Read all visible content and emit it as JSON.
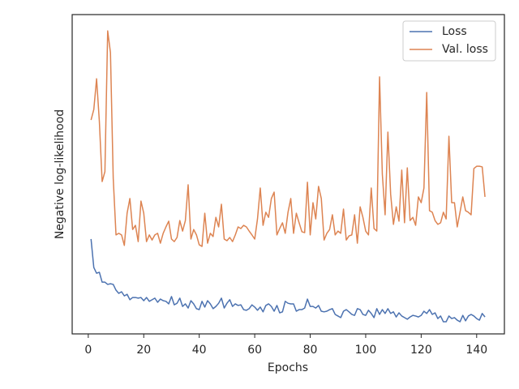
{
  "chart_data": {
    "type": "line",
    "xlabel": "Epochs",
    "ylabel": "Negative log-likelihood",
    "x": [
      1,
      2,
      3,
      4,
      5,
      6,
      7,
      8,
      9,
      10,
      11,
      12,
      13,
      14,
      15,
      16,
      17,
      18,
      19,
      20,
      21,
      22,
      23,
      24,
      25,
      26,
      27,
      28,
      29,
      30,
      31,
      32,
      33,
      34,
      35,
      36,
      37,
      38,
      39,
      40,
      41,
      42,
      43,
      44,
      45,
      46,
      47,
      48,
      49,
      50,
      51,
      52,
      53,
      54,
      55,
      56,
      57,
      58,
      59,
      60,
      61,
      62,
      63,
      64,
      65,
      66,
      67,
      68,
      69,
      70,
      71,
      72,
      73,
      74,
      75,
      76,
      77,
      78,
      79,
      80,
      81,
      82,
      83,
      84,
      85,
      86,
      87,
      88,
      89,
      90,
      91,
      92,
      93,
      94,
      95,
      96,
      97,
      98,
      99,
      100,
      101,
      102,
      103,
      104,
      105,
      106,
      107,
      108,
      109,
      110,
      111,
      112,
      113,
      114,
      115,
      116,
      117,
      118,
      119,
      120,
      121,
      122,
      123,
      124,
      125,
      126,
      127,
      128,
      129,
      130,
      131,
      132,
      133,
      134,
      135,
      136,
      137,
      138,
      139,
      140,
      141,
      142,
      143
    ],
    "series": [
      {
        "name": "Loss",
        "color": "#4c72b0",
        "values": [
          29.7,
          20.8,
          19.0,
          19.3,
          16.2,
          16.2,
          15.5,
          15.7,
          15.5,
          13.7,
          12.7,
          13.2,
          11.9,
          12.4,
          10.7,
          11.4,
          11.4,
          11.2,
          11.4,
          10.4,
          11.4,
          10.2,
          10.7,
          11.2,
          9.9,
          10.9,
          10.4,
          10.2,
          9.4,
          11.7,
          9.1,
          9.6,
          11.2,
          8.6,
          9.4,
          8.1,
          10.4,
          9.4,
          7.9,
          7.6,
          10.2,
          8.4,
          10.4,
          9.4,
          7.9,
          8.6,
          9.6,
          11.2,
          8.1,
          9.6,
          10.7,
          8.6,
          9.4,
          8.9,
          9.1,
          7.6,
          7.4,
          7.9,
          9.1,
          8.4,
          7.4,
          8.4,
          6.9,
          8.9,
          9.4,
          8.6,
          7.1,
          8.9,
          6.6,
          6.9,
          10.2,
          9.6,
          9.4,
          9.4,
          7.1,
          7.6,
          7.6,
          8.1,
          10.9,
          8.6,
          8.6,
          8.1,
          8.9,
          7.1,
          6.9,
          7.1,
          7.6,
          7.9,
          6.1,
          5.6,
          5.1,
          7.1,
          7.6,
          6.9,
          6.1,
          5.8,
          7.9,
          7.6,
          6.1,
          5.8,
          7.4,
          6.4,
          5.1,
          7.9,
          6.1,
          7.6,
          6.4,
          7.9,
          6.4,
          6.9,
          5.3,
          6.6,
          5.6,
          5.1,
          4.6,
          5.3,
          5.8,
          5.6,
          5.3,
          5.8,
          7.1,
          6.4,
          7.6,
          6.1,
          6.6,
          4.8,
          5.6,
          3.8,
          3.8,
          5.6,
          4.8,
          5.1,
          4.3,
          3.8,
          5.8,
          4.1,
          5.6,
          6.1,
          5.6,
          4.8,
          4.3,
          6.4,
          5.3
        ]
      },
      {
        "name": "Val. loss",
        "color": "#dd8452",
        "values": [
          67.0,
          70.3,
          79.9,
          66.5,
          47.7,
          50.8,
          94.9,
          88.1,
          48.7,
          31.0,
          31.5,
          31.0,
          27.7,
          37.8,
          42.4,
          32.7,
          34.0,
          28.9,
          41.6,
          37.8,
          28.9,
          31.0,
          29.4,
          31.0,
          31.5,
          28.4,
          31.5,
          33.5,
          35.3,
          29.7,
          28.9,
          30.2,
          35.5,
          32.2,
          35.5,
          46.7,
          29.7,
          32.7,
          31.0,
          27.9,
          27.4,
          37.8,
          28.4,
          31.5,
          30.5,
          36.5,
          33.5,
          40.6,
          29.7,
          29.2,
          30.2,
          28.9,
          31.0,
          33.5,
          33.0,
          34.0,
          33.5,
          32.2,
          31.0,
          29.7,
          36.0,
          45.7,
          34.0,
          38.1,
          36.5,
          42.4,
          44.4,
          31.0,
          33.0,
          34.8,
          31.5,
          38.1,
          42.4,
          31.5,
          37.8,
          34.8,
          32.0,
          31.7,
          47.5,
          31.0,
          41.1,
          36.0,
          46.2,
          42.4,
          29.4,
          31.5,
          32.7,
          37.3,
          31.0,
          32.2,
          31.5,
          39.1,
          29.4,
          30.7,
          31.0,
          37.3,
          28.4,
          39.8,
          36.5,
          32.2,
          31.0,
          45.7,
          33.0,
          32.2,
          80.5,
          50.0,
          37.3,
          63.2,
          43.7,
          34.3,
          39.8,
          35.3,
          51.3,
          34.8,
          52.0,
          35.5,
          36.5,
          34.0,
          42.9,
          41.1,
          45.7,
          75.6,
          38.6,
          38.1,
          35.5,
          34.3,
          34.8,
          38.1,
          36.0,
          61.9,
          41.1,
          41.1,
          33.5,
          38.1,
          42.9,
          38.6,
          38.1,
          37.3,
          51.8,
          52.5,
          52.5,
          52.3,
          42.9
        ]
      }
    ],
    "xlim": [
      -5.8,
      150
    ],
    "xticks": [
      0,
      20,
      40,
      60,
      80,
      100,
      120,
      140
    ],
    "ylim": [
      0,
      100
    ],
    "legend": "upper right"
  }
}
